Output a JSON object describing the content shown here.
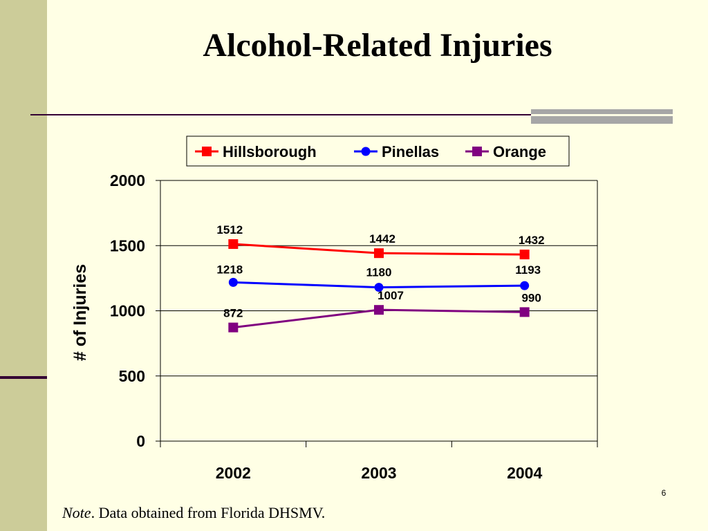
{
  "slide": {
    "title": "Alcohol-Related Injuries",
    "page_number": "6",
    "note_label": "Note",
    "note_text": ".  Data obtained from Florida DHSMV."
  },
  "chart_data": {
    "type": "line",
    "title": "",
    "xlabel": "",
    "ylabel": "# of Injuries",
    "categories": [
      "2002",
      "2003",
      "2004"
    ],
    "ylim": [
      0,
      2000
    ],
    "yticks": [
      0,
      500,
      1000,
      1500,
      2000
    ],
    "grid": true,
    "legend_position": "top",
    "series": [
      {
        "name": "Hillsborough",
        "values": [
          1512,
          1442,
          1432
        ],
        "color": "#FF0000",
        "marker": "square"
      },
      {
        "name": "Pinellas",
        "values": [
          1218,
          1180,
          1193
        ],
        "color": "#0000FF",
        "marker": "circle"
      },
      {
        "name": "Orange",
        "values": [
          872,
          1007,
          990
        ],
        "color": "#800080",
        "marker": "square"
      }
    ]
  }
}
